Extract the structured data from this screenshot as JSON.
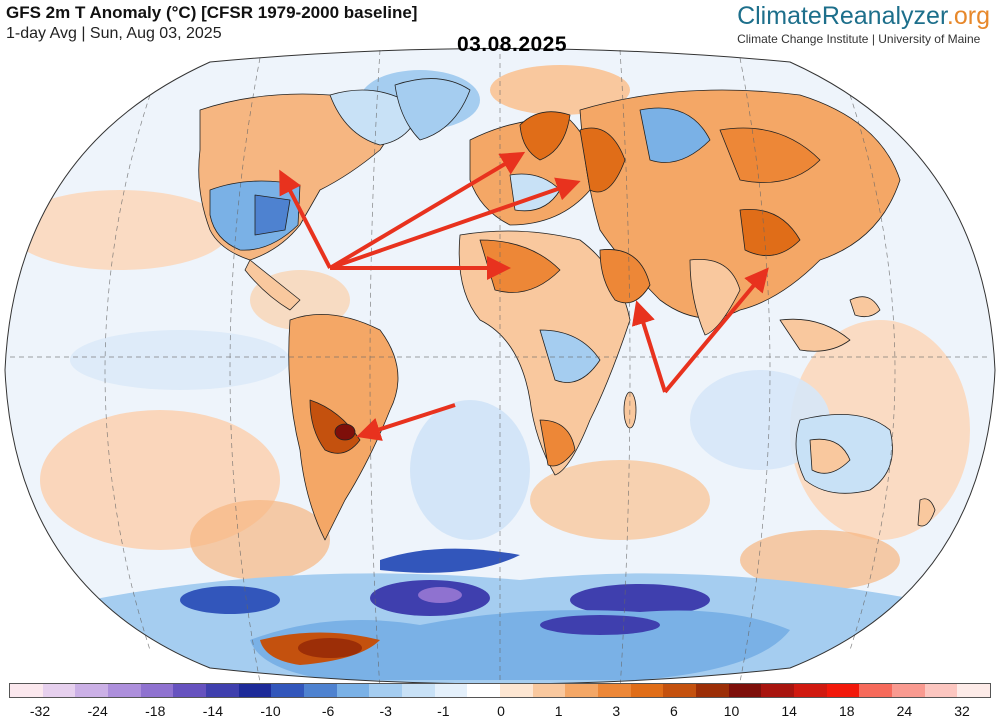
{
  "header": {
    "title": "GFS 2m T Anomaly (°C) [CFSR 1979-2000 baseline]",
    "subtitle": "1-day Avg | Sun, Aug 03, 2025",
    "date_label": "03.08.2025"
  },
  "brand": {
    "name_main": "ClimateReanalyzer",
    "name_tld": ".org",
    "subtitle": "Climate Change Institute | University of Maine",
    "colors": {
      "main": "#1d6f8b",
      "tld": "#e7882b"
    }
  },
  "map": {
    "projection": "Robinson-like world projection",
    "icon": "world-map-icon",
    "arrows_color": "#e8321e",
    "arrow_targets": [
      "western-canada",
      "scandinavia",
      "western-russia",
      "north-africa",
      "middle-east",
      "south-asia",
      "south-america"
    ]
  },
  "colorbar": {
    "colors": [
      "#fbe8ee",
      "#e6d0ee",
      "#cbb0e6",
      "#ad8fdc",
      "#8f72d0",
      "#6652bf",
      "#3f3fae",
      "#1d2a99",
      "#3256bb",
      "#4e82d0",
      "#7ab1e6",
      "#a5cdf0",
      "#c8e1f6",
      "#e4f0fb",
      "#ffffff",
      "#fde6d2",
      "#f9c89e",
      "#f4a766",
      "#ed8737",
      "#e06d18",
      "#c4510e",
      "#9c2e07",
      "#7e0f0a",
      "#a8140e",
      "#d0190f",
      "#f2180a",
      "#f66a5b",
      "#f99a90",
      "#fcc6c0",
      "#fdebe8"
    ],
    "tick_labels": [
      "-32",
      "-24",
      "-18",
      "-14",
      "-10",
      "-6",
      "-3",
      "-1",
      "0",
      "1",
      "3",
      "6",
      "10",
      "14",
      "18",
      "24",
      "32"
    ]
  }
}
